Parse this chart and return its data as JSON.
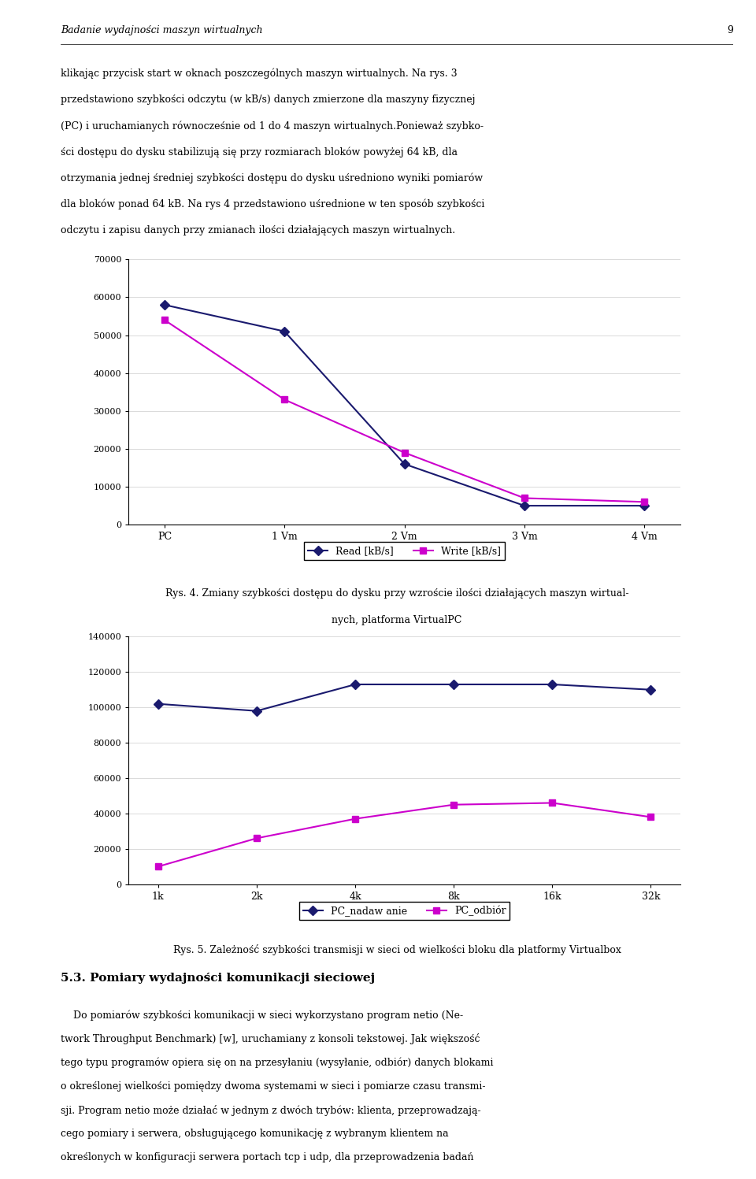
{
  "chart1": {
    "x_labels": [
      "PC",
      "1 Vm",
      "2 Vm",
      "3 Vm",
      "4 Vm"
    ],
    "read_values": [
      58000,
      51000,
      16000,
      5000,
      5000
    ],
    "write_values": [
      54000,
      33000,
      19000,
      7000,
      6000
    ],
    "ylim": [
      0,
      70000
    ],
    "yticks": [
      0,
      10000,
      20000,
      30000,
      40000,
      50000,
      60000,
      70000
    ],
    "read_color": "#1a1a6e",
    "write_color": "#cc00cc",
    "legend_read": "Read [kB/s]",
    "legend_write": "Write [kB/s]"
  },
  "chart2": {
    "x_labels": [
      "1k",
      "2k",
      "4k",
      "8k",
      "16k",
      "32k"
    ],
    "nadawanie_values": [
      102000,
      98000,
      113000,
      113000,
      113000,
      110000
    ],
    "odbior_values": [
      10000,
      26000,
      37000,
      45000,
      46000,
      38000
    ],
    "ylim": [
      0,
      140000
    ],
    "yticks": [
      0,
      20000,
      40000,
      60000,
      80000,
      100000,
      120000,
      140000
    ],
    "nadawanie_color": "#1a1a6e",
    "odbior_color": "#cc00cc",
    "legend_nadawanie": "PC_nadaw anie",
    "legend_odbior": "PC_odbiór"
  },
  "caption1": "Rys. 4. Zmiany szybkości dostępu do dysku przy wzroście ilości działających maszyn wirtual-\nnych, platforma VirtualPC",
  "caption2": "Rys. 5. Zależność szybkości transmisji w sieci od wielkości bloku dla platformy Virtualbox",
  "header_text": "Badanie wydajności maszyn wirtualnych",
  "page_num": "9",
  "body_text": "klikając przycisk start w oknach poszczególnych maszyn wirtualnych. Na rys. 3\nprzedstawiono szybkości odczytu (w kB/s) danych zmierzone dla maszyny fizycznej\n(PC) i uruchamianych równocześnie od 1 do 4 maszyn wirtualnych.Ponieważ szybko-ści dostępu do dysku stabilizują się przy rozmiarach bloków powyżej 64 kB, dla\notrzymania jednej średniej szybkości dostępu do dysku uśredniono wyniki pomiarów\ndla bloków ponad 64 kB. Na rys 4 przedstawiono uśrednione w ten sposób szybkości\nodczytu i zapisu danych przy zmianach ilości działających maszyn wirtualnych.",
  "section_title": "5.3. Pomiary wydajności komunikacji sieciowej",
  "section_body": "Do pomiarów szybkości komunikacji w sieci wykorzystano program netio (Ne-\ntwork Throughput Benchmark) [w], uruchamiany z konsoli tekstowej. Jak większość\ntego typu programów opiera się on na przesyłaniu (wysyłanie, odbiór) danych blokami\no określonej wielkości pomiędzy dwoma systemami w sieci i pomiarze czasu transmi-\nsji. Program netio może działać w jednym z dwóch trybów: klienta, przeprowadzają-\ncego pomiary i serwera, obsługującego komunikację z wybranym klientem na\nokreślonych w konfiguracji serwera portach tcp i udp, dla przeprowadzenia badań"
}
